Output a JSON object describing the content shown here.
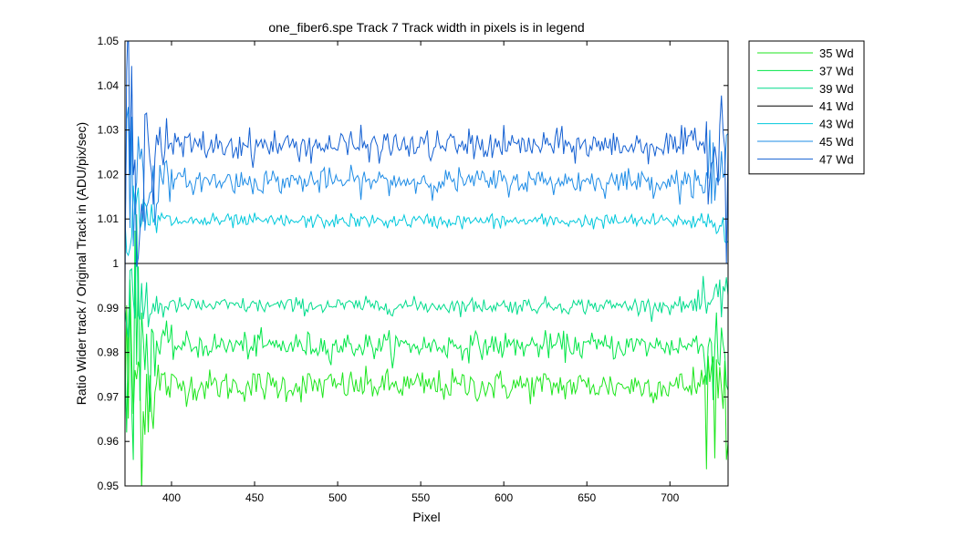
{
  "chart_data": {
    "type": "line",
    "title": "one_fiber6.spe   Track 7     Track width in pixels is in legend",
    "xlabel": "Pixel",
    "ylabel": "Ratio Wider track / Original Track in (ADU/pix/sec)",
    "xlim": [
      372,
      735
    ],
    "ylim": [
      0.95,
      1.05
    ],
    "xticks": [
      400,
      450,
      500,
      550,
      600,
      650,
      700
    ],
    "yticks": [
      0.95,
      0.96,
      0.97,
      0.98,
      0.99,
      1,
      1.01,
      1.02,
      1.03,
      1.04,
      1.05
    ],
    "ytick_labels": [
      "0.95",
      "0.96",
      "0.97",
      "0.98",
      "0.99",
      "1",
      "1.01",
      "1.02",
      "1.03",
      "1.04",
      "1.05"
    ],
    "x_range": [
      372,
      735
    ],
    "grid": false,
    "legend_position": "outside-top-right",
    "series": [
      {
        "name": "35 Wd",
        "color": "#1ee61e",
        "level": 0.9725,
        "noise": 0.0018,
        "edge_noise": 0.018
      },
      {
        "name": "37 Wd",
        "color": "#00e646",
        "level": 0.9815,
        "noise": 0.0015,
        "edge_noise": 0.014
      },
      {
        "name": "39 Wd",
        "color": "#00dc8c",
        "level": 0.9905,
        "noise": 0.0009,
        "edge_noise": 0.008
      },
      {
        "name": "41 Wd",
        "color": "#000000",
        "level": 1.0,
        "noise": 0.0,
        "edge_noise": 0.0
      },
      {
        "name": "43 Wd",
        "color": "#00c8dc",
        "level": 1.0095,
        "noise": 0.0008,
        "edge_noise": 0.007
      },
      {
        "name": "45 Wd",
        "color": "#1e8ce6",
        "level": 1.0185,
        "noise": 0.0014,
        "edge_noise": 0.012
      },
      {
        "name": "47 Wd",
        "color": "#1460d2",
        "level": 1.0265,
        "noise": 0.0017,
        "edge_noise": 0.016
      }
    ]
  }
}
